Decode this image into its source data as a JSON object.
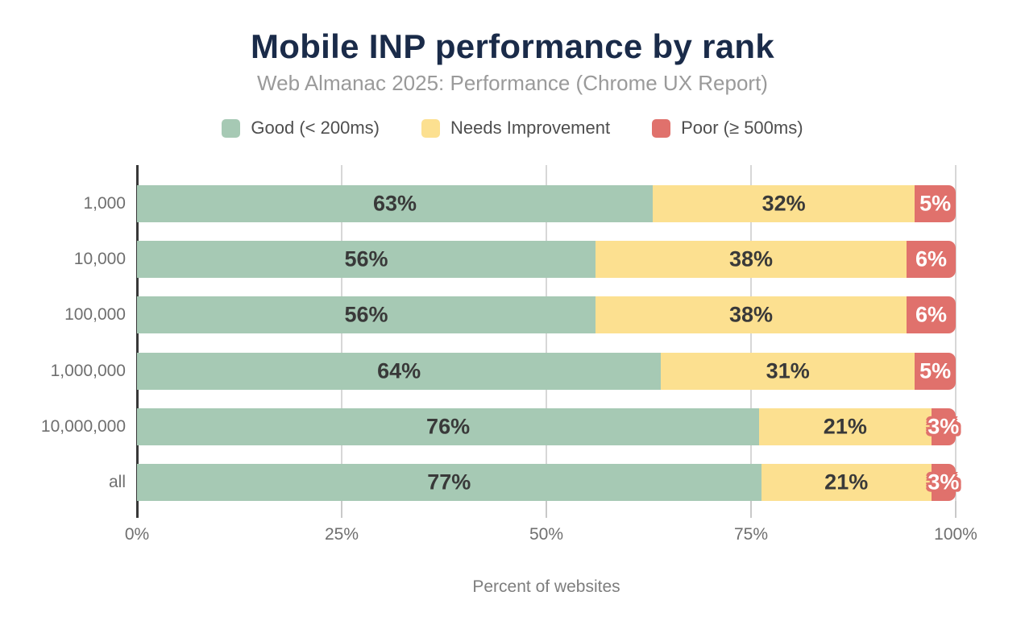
{
  "title": "Mobile INP performance by rank",
  "subtitle": "Web Almanac 2025: Performance (Chrome UX Report)",
  "legend": [
    {
      "label": "Good (< 200ms)",
      "color": "#a6c9b4"
    },
    {
      "label": "Needs Improvement",
      "color": "#fce090"
    },
    {
      "label": "Poor (≥ 500ms)",
      "color": "#e0716c"
    }
  ],
  "chart_data": {
    "type": "bar",
    "orientation": "horizontal",
    "stacked": true,
    "title": "Mobile INP performance by rank",
    "subtitle": "Web Almanac 2025: Performance (Chrome UX Report)",
    "categories": [
      "1,000",
      "10,000",
      "100,000",
      "1,000,000",
      "10,000,000",
      "all"
    ],
    "series": [
      {
        "name": "Good (< 200ms)",
        "color": "#a6c9b4",
        "values": [
          63,
          56,
          56,
          64,
          76,
          77
        ]
      },
      {
        "name": "Needs Improvement",
        "color": "#fce090",
        "values": [
          32,
          38,
          38,
          31,
          21,
          21
        ]
      },
      {
        "name": "Poor (≥ 500ms)",
        "color": "#e0716c",
        "values": [
          5,
          6,
          6,
          5,
          3,
          3
        ]
      }
    ],
    "xlabel": "Percent of websites",
    "ylabel": "",
    "x_ticks": [
      "0%",
      "25%",
      "50%",
      "75%",
      "100%"
    ],
    "x_tick_values": [
      0,
      25,
      50,
      75,
      100
    ],
    "xlim": [
      0,
      100
    ],
    "grid": true,
    "legend_position": "top",
    "value_suffix": "%"
  }
}
